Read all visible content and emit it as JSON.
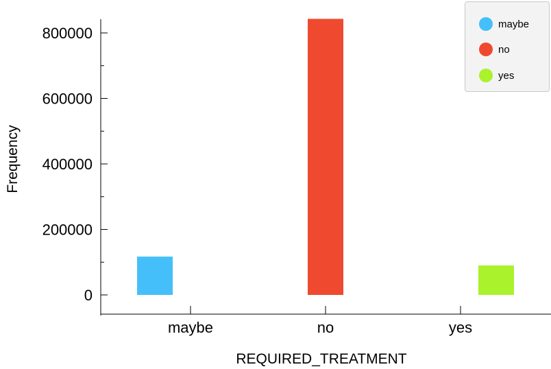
{
  "chart_data": {
    "type": "bar",
    "categories": [
      "maybe",
      "no",
      "yes"
    ],
    "series": [
      {
        "name": "maybe",
        "color": "#45bff9",
        "category": "maybe",
        "value": 117000
      },
      {
        "name": "no",
        "color": "#ef4a30",
        "category": "no",
        "value": 843000
      },
      {
        "name": "yes",
        "color": "#aaf22c",
        "category": "yes",
        "value": 90000
      }
    ],
    "xlabel": "REQUIRED_TREATMENT",
    "ylabel": "Frequency",
    "ylim": [
      0,
      843000
    ],
    "yticks": [
      0,
      200000,
      400000,
      600000,
      800000
    ],
    "ytick_labels": [
      "0",
      "200000",
      "400000",
      "600000",
      "800000"
    ],
    "grid": false,
    "legend_position": "top-right"
  },
  "legend": {
    "items": [
      {
        "label": "maybe",
        "color": "#45bff9"
      },
      {
        "label": "no",
        "color": "#ef4a30"
      },
      {
        "label": "yes",
        "color": "#aaf22c"
      }
    ]
  }
}
